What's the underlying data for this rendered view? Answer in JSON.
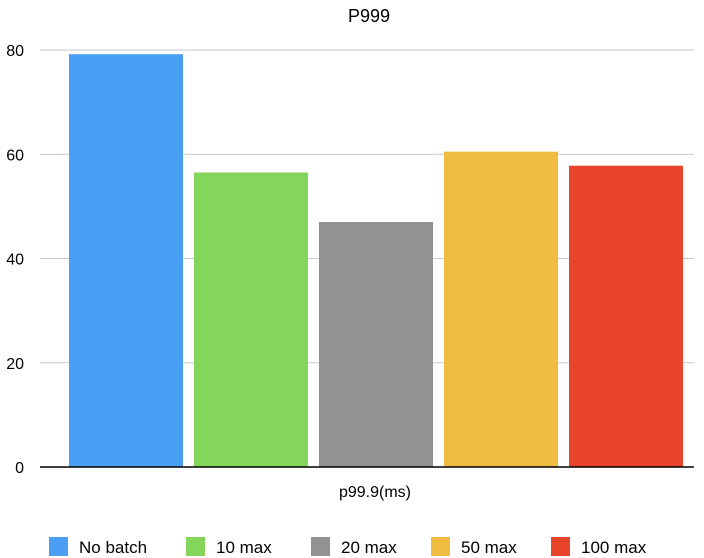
{
  "chart_data": {
    "type": "bar",
    "title": "P999",
    "xlabel": "p99.9(ms)",
    "ylabel": "",
    "categories": [
      "p99.9(ms)"
    ],
    "series": [
      {
        "name": "No batch",
        "values": [
          79.2
        ],
        "color": "#4a9ff5"
      },
      {
        "name": "10 max",
        "values": [
          56.5
        ],
        "color": "#84d65a"
      },
      {
        "name": "20 max",
        "values": [
          47.0
        ],
        "color": "#929292"
      },
      {
        "name": "50 max",
        "values": [
          60.5
        ],
        "color": "#f0bd42"
      },
      {
        "name": "100 max",
        "values": [
          57.8
        ],
        "color": "#e8432b"
      }
    ],
    "ylim": [
      0,
      80
    ],
    "yticks": [
      0,
      20,
      40,
      60,
      80
    ],
    "grid": true,
    "legend_position": "bottom"
  }
}
